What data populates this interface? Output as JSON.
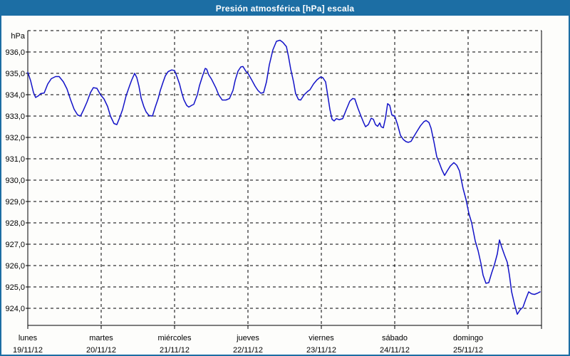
{
  "window": {
    "title": "Presión atmosférica [hPa] escala"
  },
  "colors": {
    "frame": "#1C6EA4",
    "titlebar_bg": "#1C6EA4",
    "title_text": "#FFFFFF",
    "plot_bg": "#FDFDFB",
    "grid": "#000000",
    "axis": "#000000",
    "tick_text": "#000000",
    "line": "#1212C8"
  },
  "chart_data": {
    "type": "line",
    "title": "Presión atmosférica [hPa] escala",
    "y_unit_label": "hPa",
    "ylim": [
      923.2,
      937
    ],
    "y_top_gridline": 937,
    "grid": "dashed",
    "legend": "none",
    "y_ticks": [
      {
        "value": 936,
        "label": "936,0"
      },
      {
        "value": 935,
        "label": "935,0"
      },
      {
        "value": 934,
        "label": "934,0"
      },
      {
        "value": 933,
        "label": "933,0"
      },
      {
        "value": 932,
        "label": "932,0"
      },
      {
        "value": 931,
        "label": "931,0"
      },
      {
        "value": 930,
        "label": "930,0"
      },
      {
        "value": 929,
        "label": "929,0"
      },
      {
        "value": 928,
        "label": "928,0"
      },
      {
        "value": 927,
        "label": "927,0"
      },
      {
        "value": 926,
        "label": "926,0"
      },
      {
        "value": 925,
        "label": "925,0"
      },
      {
        "value": 924,
        "label": "924,0"
      }
    ],
    "x_range_days": [
      0,
      7
    ],
    "days": [
      {
        "name": "lunes",
        "date": "19/11/12"
      },
      {
        "name": "martes",
        "date": "20/11/12"
      },
      {
        "name": "miércoles",
        "date": "21/11/12"
      },
      {
        "name": "jueves",
        "date": "22/11/12"
      },
      {
        "name": "viernes",
        "date": "23/11/12"
      },
      {
        "name": "sábado",
        "date": "24/11/12"
      },
      {
        "name": "domingo",
        "date": "25/11/12"
      }
    ],
    "series": [
      {
        "name": "Presión atmosférica [hPa]",
        "points": [
          [
            0.0,
            935.05
          ],
          [
            0.039,
            934.65
          ],
          [
            0.078,
            934.1
          ],
          [
            0.107,
            933.87
          ],
          [
            0.146,
            933.95
          ],
          [
            0.175,
            934.05
          ],
          [
            0.223,
            934.08
          ],
          [
            0.272,
            934.5
          ],
          [
            0.32,
            934.75
          ],
          [
            0.379,
            934.85
          ],
          [
            0.427,
            934.85
          ],
          [
            0.485,
            934.6
          ],
          [
            0.534,
            934.27
          ],
          [
            0.583,
            933.77
          ],
          [
            0.631,
            933.32
          ],
          [
            0.68,
            933.05
          ],
          [
            0.718,
            933.0
          ],
          [
            0.757,
            933.27
          ],
          [
            0.806,
            933.65
          ],
          [
            0.854,
            934.1
          ],
          [
            0.893,
            934.33
          ],
          [
            0.942,
            934.3
          ],
          [
            0.99,
            934.0
          ],
          [
            1.039,
            933.8
          ],
          [
            1.087,
            933.45
          ],
          [
            1.126,
            933.0
          ],
          [
            1.175,
            932.65
          ],
          [
            1.214,
            932.6
          ],
          [
            1.252,
            932.93
          ],
          [
            1.291,
            933.3
          ],
          [
            1.34,
            933.95
          ],
          [
            1.388,
            934.43
          ],
          [
            1.417,
            934.7
          ],
          [
            1.456,
            935.0
          ],
          [
            1.485,
            934.8
          ],
          [
            1.515,
            934.4
          ],
          [
            1.544,
            933.85
          ],
          [
            1.583,
            933.43
          ],
          [
            1.612,
            933.2
          ],
          [
            1.65,
            933.03
          ],
          [
            1.699,
            933.0
          ],
          [
            1.738,
            933.43
          ],
          [
            1.777,
            933.82
          ],
          [
            1.806,
            934.2
          ],
          [
            1.845,
            934.6
          ],
          [
            1.874,
            934.88
          ],
          [
            1.913,
            935.08
          ],
          [
            1.961,
            935.16
          ],
          [
            2.0,
            935.13
          ],
          [
            2.029,
            934.88
          ],
          [
            2.068,
            934.5
          ],
          [
            2.097,
            934.1
          ],
          [
            2.126,
            933.77
          ],
          [
            2.165,
            933.5
          ],
          [
            2.194,
            933.42
          ],
          [
            2.233,
            933.5
          ],
          [
            2.262,
            933.55
          ],
          [
            2.311,
            934.0
          ],
          [
            2.34,
            934.43
          ],
          [
            2.379,
            934.85
          ],
          [
            2.417,
            935.23
          ],
          [
            2.437,
            935.2
          ],
          [
            2.466,
            934.93
          ],
          [
            2.505,
            934.72
          ],
          [
            2.563,
            934.32
          ],
          [
            2.602,
            933.99
          ],
          [
            2.65,
            933.75
          ],
          [
            2.699,
            933.75
          ],
          [
            2.748,
            933.82
          ],
          [
            2.796,
            934.2
          ],
          [
            2.825,
            934.66
          ],
          [
            2.864,
            935.1
          ],
          [
            2.903,
            935.3
          ],
          [
            2.932,
            935.32
          ],
          [
            2.971,
            935.1
          ],
          [
            3.0,
            935.0
          ],
          [
            3.049,
            934.71
          ],
          [
            3.097,
            934.4
          ],
          [
            3.136,
            934.2
          ],
          [
            3.175,
            934.07
          ],
          [
            3.214,
            934.1
          ],
          [
            3.252,
            934.6
          ],
          [
            3.291,
            935.4
          ],
          [
            3.34,
            936.1
          ],
          [
            3.388,
            936.5
          ],
          [
            3.437,
            936.55
          ],
          [
            3.476,
            936.45
          ],
          [
            3.524,
            936.25
          ],
          [
            3.553,
            935.77
          ],
          [
            3.583,
            935.2
          ],
          [
            3.621,
            934.6
          ],
          [
            3.65,
            934.05
          ],
          [
            3.689,
            933.77
          ],
          [
            3.718,
            933.75
          ],
          [
            3.767,
            934.0
          ],
          [
            3.816,
            934.16
          ],
          [
            3.845,
            934.23
          ],
          [
            3.893,
            934.5
          ],
          [
            3.942,
            934.7
          ],
          [
            3.99,
            934.83
          ],
          [
            4.019,
            934.8
          ],
          [
            4.058,
            934.6
          ],
          [
            4.097,
            933.75
          ],
          [
            4.117,
            933.3
          ],
          [
            4.146,
            932.85
          ],
          [
            4.175,
            932.77
          ],
          [
            4.204,
            932.88
          ],
          [
            4.243,
            932.83
          ],
          [
            4.291,
            932.88
          ],
          [
            4.34,
            933.3
          ],
          [
            4.388,
            933.7
          ],
          [
            4.427,
            933.82
          ],
          [
            4.456,
            933.8
          ],
          [
            4.495,
            933.4
          ],
          [
            4.534,
            933.05
          ],
          [
            4.573,
            932.72
          ],
          [
            4.602,
            932.5
          ],
          [
            4.641,
            932.6
          ],
          [
            4.68,
            932.9
          ],
          [
            4.709,
            932.85
          ],
          [
            4.738,
            932.6
          ],
          [
            4.767,
            932.52
          ],
          [
            4.796,
            932.68
          ],
          [
            4.816,
            932.5
          ],
          [
            4.845,
            932.45
          ],
          [
            4.874,
            932.9
          ],
          [
            4.903,
            933.58
          ],
          [
            4.932,
            933.5
          ],
          [
            4.961,
            933.05
          ],
          [
            5.0,
            933.0
          ],
          [
            5.039,
            932.6
          ],
          [
            5.078,
            932.1
          ],
          [
            5.117,
            931.9
          ],
          [
            5.155,
            931.8
          ],
          [
            5.184,
            931.77
          ],
          [
            5.223,
            931.82
          ],
          [
            5.262,
            932.05
          ],
          [
            5.301,
            932.27
          ],
          [
            5.35,
            932.54
          ],
          [
            5.398,
            932.74
          ],
          [
            5.427,
            932.79
          ],
          [
            5.466,
            932.7
          ],
          [
            5.495,
            932.43
          ],
          [
            5.534,
            931.8
          ],
          [
            5.573,
            931.1
          ],
          [
            5.612,
            930.77
          ],
          [
            5.641,
            930.5
          ],
          [
            5.68,
            930.22
          ],
          [
            5.718,
            930.45
          ],
          [
            5.757,
            930.66
          ],
          [
            5.806,
            930.82
          ],
          [
            5.845,
            930.7
          ],
          [
            5.883,
            930.43
          ],
          [
            5.932,
            929.6
          ],
          [
            5.971,
            929.1
          ],
          [
            6.01,
            928.45
          ],
          [
            6.049,
            928.0
          ],
          [
            6.097,
            927.15
          ],
          [
            6.136,
            926.7
          ],
          [
            6.175,
            926.1
          ],
          [
            6.204,
            925.55
          ],
          [
            6.243,
            925.17
          ],
          [
            6.282,
            925.2
          ],
          [
            6.32,
            925.65
          ],
          [
            6.359,
            926.05
          ],
          [
            6.398,
            926.55
          ],
          [
            6.427,
            927.2
          ],
          [
            6.456,
            926.88
          ],
          [
            6.495,
            926.5
          ],
          [
            6.534,
            926.15
          ],
          [
            6.563,
            925.55
          ],
          [
            6.592,
            924.78
          ],
          [
            6.631,
            924.2
          ],
          [
            6.67,
            923.72
          ],
          [
            6.709,
            923.93
          ],
          [
            6.748,
            924.05
          ],
          [
            6.786,
            924.43
          ],
          [
            6.825,
            924.77
          ],
          [
            6.864,
            924.68
          ],
          [
            6.903,
            924.65
          ],
          [
            6.942,
            924.7
          ],
          [
            6.981,
            924.77
          ]
        ]
      }
    ]
  }
}
